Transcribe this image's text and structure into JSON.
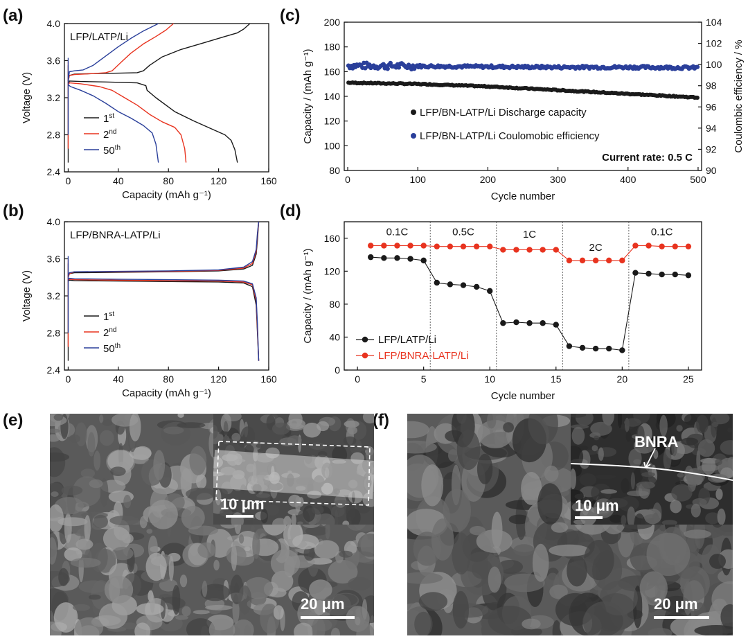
{
  "colors": {
    "black": "#1a1a1a",
    "red": "#e8331f",
    "blue": "#2a3f9a",
    "grid": "#555555"
  },
  "panels": {
    "a": {
      "letter": "(a)",
      "label": "LFP/LATP/Li",
      "xlabel": "Capacity (mAh g⁻¹)",
      "ylabel": "Voltage (V)",
      "xticks": [
        "0",
        "40",
        "80",
        "120",
        "160"
      ],
      "yticks": [
        "2.4",
        "2.8",
        "3.2",
        "3.6",
        "4.0"
      ],
      "legend": [
        {
          "base": "1",
          "sup": "st",
          "color": "black"
        },
        {
          "base": "2",
          "sup": "nd",
          "color": "red"
        },
        {
          "base": "50",
          "sup": "th",
          "color": "blue"
        }
      ]
    },
    "b": {
      "letter": "(b)",
      "label": "LFP/BNRA-LATP/Li",
      "xlabel": "Capacity (mAh g⁻¹)",
      "ylabel": "Voltage (V)",
      "xticks": [
        "0",
        "40",
        "80",
        "120",
        "160"
      ],
      "yticks": [
        "2.4",
        "2.8",
        "3.2",
        "3.6",
        "4.0"
      ],
      "legend": [
        {
          "base": "1",
          "sup": "st",
          "color": "black"
        },
        {
          "base": "2",
          "sup": "nd",
          "color": "red"
        },
        {
          "base": "50",
          "sup": "th",
          "color": "blue"
        }
      ]
    },
    "c": {
      "letter": "(c)",
      "xlabel": "Cycle number",
      "ylabel": "Capacity / (mAh g⁻¹)",
      "y2label": "Coulombic efficiency / %",
      "xticks": [
        "0",
        "100",
        "200",
        "300",
        "400",
        "500"
      ],
      "yticks": [
        "80",
        "100",
        "120",
        "140",
        "160",
        "180",
        "200"
      ],
      "y2ticks": [
        "90",
        "92",
        "94",
        "96",
        "98",
        "100",
        "102",
        "104"
      ],
      "legend": [
        "LFP/BN-LATP/Li Discharge capacity",
        "LFP/BN-LATP/Li Coulomobic efficiency"
      ],
      "note": "Current rate: 0.5 C"
    },
    "d": {
      "letter": "(d)",
      "xlabel": "Cycle number",
      "ylabel": "Capacity / (mAh g⁻¹)",
      "xticks": [
        "0",
        "5",
        "10",
        "15",
        "20",
        "25"
      ],
      "yticks": [
        "0",
        "40",
        "80",
        "120",
        "160"
      ],
      "rates": [
        "0.1C",
        "0.5C",
        "1C",
        "2C",
        "0.1C"
      ],
      "legend": [
        "LFP/LATP/Li",
        "LFP/BNRA-LATP/Li"
      ]
    },
    "e": {
      "letter": "(e)",
      "scale_main": "20 μm",
      "scale_inset": "10 μm"
    },
    "f": {
      "letter": "(f)",
      "scale_main": "20 μm",
      "scale_inset": "10 μm",
      "inset_label": "BNRA"
    }
  },
  "chart_data": [
    {
      "panel": "a",
      "type": "line",
      "xlabel": "Capacity (mAh g⁻¹)",
      "ylabel": "Voltage (V)",
      "xlim": [
        -3,
        160
      ],
      "ylim": [
        2.4,
        4.0
      ],
      "series": [
        {
          "name": "1st",
          "color": "black",
          "charge": [
            [
              0,
              3.38
            ],
            [
              1,
              3.44
            ],
            [
              5,
              3.455
            ],
            [
              20,
              3.46
            ],
            [
              40,
              3.465
            ],
            [
              55,
              3.47
            ],
            [
              60,
              3.49
            ],
            [
              65,
              3.55
            ],
            [
              75,
              3.64
            ],
            [
              90,
              3.72
            ],
            [
              110,
              3.8
            ],
            [
              125,
              3.86
            ],
            [
              135,
              3.9
            ],
            [
              140,
              3.94
            ],
            [
              145,
              4.0
            ]
          ],
          "discharge": [
            [
              0,
              3.34
            ],
            [
              1,
              3.38
            ],
            [
              10,
              3.375
            ],
            [
              30,
              3.37
            ],
            [
              55,
              3.36
            ],
            [
              62,
              3.33
            ],
            [
              63,
              3.28
            ],
            [
              70,
              3.2
            ],
            [
              85,
              3.05
            ],
            [
              100,
              2.95
            ],
            [
              115,
              2.86
            ],
            [
              125,
              2.8
            ],
            [
              130,
              2.74
            ],
            [
              133,
              2.64
            ],
            [
              135,
              2.5
            ]
          ]
        },
        {
          "name": "2nd",
          "color": "red",
          "charge": [
            [
              0,
              3.38
            ],
            [
              1,
              3.44
            ],
            [
              5,
              3.45
            ],
            [
              20,
              3.46
            ],
            [
              30,
              3.47
            ],
            [
              35,
              3.49
            ],
            [
              42,
              3.58
            ],
            [
              50,
              3.68
            ],
            [
              60,
              3.78
            ],
            [
              70,
              3.86
            ],
            [
              78,
              3.93
            ],
            [
              84,
              4.0
            ]
          ],
          "discharge": [
            [
              0,
              3.34
            ],
            [
              1,
              3.36
            ],
            [
              10,
              3.35
            ],
            [
              25,
              3.32
            ],
            [
              35,
              3.28
            ],
            [
              45,
              3.2
            ],
            [
              55,
              3.12
            ],
            [
              65,
              3.02
            ],
            [
              75,
              2.94
            ],
            [
              85,
              2.88
            ],
            [
              90,
              2.8
            ],
            [
              93,
              2.65
            ],
            [
              94,
              2.5
            ]
          ]
        },
        {
          "name": "50th",
          "color": "blue",
          "charge": [
            [
              0,
              3.38
            ],
            [
              1,
              3.48
            ],
            [
              5,
              3.49
            ],
            [
              12,
              3.5
            ],
            [
              20,
              3.55
            ],
            [
              30,
              3.65
            ],
            [
              40,
              3.75
            ],
            [
              50,
              3.84
            ],
            [
              60,
              3.92
            ],
            [
              72,
              4.0
            ]
          ],
          "discharge": [
            [
              0,
              3.34
            ],
            [
              2,
              3.32
            ],
            [
              10,
              3.28
            ],
            [
              20,
              3.22
            ],
            [
              30,
              3.14
            ],
            [
              40,
              3.05
            ],
            [
              50,
              2.98
            ],
            [
              60,
              2.9
            ],
            [
              67,
              2.82
            ],
            [
              70,
              2.7
            ],
            [
              72,
              2.5
            ]
          ]
        }
      ]
    },
    {
      "panel": "b",
      "type": "line",
      "xlabel": "Capacity (mAh g⁻¹)",
      "ylabel": "Voltage (V)",
      "xlim": [
        -3,
        160
      ],
      "ylim": [
        2.4,
        4.0
      ],
      "series": [
        {
          "name": "1st",
          "color": "black",
          "charge": [
            [
              0,
              3.4
            ],
            [
              1,
              3.44
            ],
            [
              5,
              3.45
            ],
            [
              40,
              3.455
            ],
            [
              80,
              3.46
            ],
            [
              120,
              3.47
            ],
            [
              140,
              3.49
            ],
            [
              147,
              3.53
            ],
            [
              150,
              3.65
            ],
            [
              151,
              3.8
            ],
            [
              152,
              4.0
            ]
          ],
          "discharge": [
            [
              0,
              3.36
            ],
            [
              1,
              3.37
            ],
            [
              5,
              3.365
            ],
            [
              40,
              3.36
            ],
            [
              80,
              3.355
            ],
            [
              120,
              3.35
            ],
            [
              140,
              3.34
            ],
            [
              147,
              3.3
            ],
            [
              150,
              3.1
            ],
            [
              151,
              2.8
            ],
            [
              152,
              2.5
            ]
          ]
        },
        {
          "name": "2nd",
          "color": "red",
          "charge": [
            [
              0,
              3.4
            ],
            [
              1,
              3.44
            ],
            [
              5,
              3.46
            ],
            [
              40,
              3.46
            ],
            [
              80,
              3.465
            ],
            [
              120,
              3.475
            ],
            [
              140,
              3.5
            ],
            [
              147,
              3.55
            ],
            [
              150,
              3.68
            ],
            [
              151,
              3.85
            ],
            [
              152,
              4.0
            ]
          ],
          "discharge": [
            [
              0,
              3.37
            ],
            [
              1,
              3.38
            ],
            [
              5,
              3.375
            ],
            [
              40,
              3.37
            ],
            [
              80,
              3.365
            ],
            [
              120,
              3.36
            ],
            [
              140,
              3.35
            ],
            [
              147,
              3.32
            ],
            [
              150,
              3.15
            ],
            [
              151,
              2.85
            ],
            [
              152,
              2.5
            ]
          ]
        },
        {
          "name": "50th",
          "color": "blue",
          "charge": [
            [
              0,
              3.42
            ],
            [
              1,
              3.45
            ],
            [
              5,
              3.46
            ],
            [
              40,
              3.465
            ],
            [
              80,
              3.47
            ],
            [
              120,
              3.48
            ],
            [
              140,
              3.51
            ],
            [
              147,
              3.57
            ],
            [
              150,
              3.7
            ],
            [
              151,
              3.88
            ],
            [
              152,
              4.0
            ]
          ],
          "discharge": [
            [
              0,
              3.38
            ],
            [
              1,
              3.39
            ],
            [
              5,
              3.385
            ],
            [
              40,
              3.38
            ],
            [
              80,
              3.375
            ],
            [
              120,
              3.37
            ],
            [
              140,
              3.36
            ],
            [
              147,
              3.33
            ],
            [
              150,
              3.18
            ],
            [
              151,
              2.9
            ],
            [
              152,
              2.5
            ]
          ]
        }
      ]
    },
    {
      "panel": "c",
      "type": "scatter",
      "xlabel": "Cycle number",
      "ylabel": "Capacity / (mAh g⁻¹)",
      "y2label": "Coulombic efficiency / %",
      "xlim": [
        -5,
        505
      ],
      "ylim": [
        80,
        200
      ],
      "y2lim": [
        90,
        104
      ],
      "series": [
        {
          "name": "LFP/BN-LATP/Li Discharge capacity",
          "axis": "left",
          "color": "black",
          "trend": [
            [
              1,
              151
            ],
            [
              50,
              150.5
            ],
            [
              100,
              150
            ],
            [
              200,
              148
            ],
            [
              300,
              145
            ],
            [
              400,
              142
            ],
            [
              500,
              139
            ]
          ]
        },
        {
          "name": "LFP/BN-LATP/Li Coulomobic efficiency",
          "axis": "right",
          "color": "blue",
          "trend": [
            [
              1,
              99.9
            ],
            [
              100,
              99.85
            ],
            [
              200,
              99.8
            ],
            [
              300,
              99.75
            ],
            [
              400,
              99.75
            ],
            [
              500,
              99.7
            ]
          ]
        }
      ]
    },
    {
      "panel": "d",
      "type": "line",
      "xlabel": "Cycle number",
      "ylabel": "Capacity / (mAh g⁻¹)",
      "xlim": [
        -1,
        26
      ],
      "ylim": [
        0,
        180
      ],
      "x": [
        1,
        2,
        3,
        4,
        5,
        6,
        7,
        8,
        9,
        10,
        11,
        12,
        13,
        14,
        15,
        16,
        17,
        18,
        19,
        20,
        21,
        22,
        23,
        24,
        25
      ],
      "series": [
        {
          "name": "LFP/LATP/Li",
          "color": "black",
          "values": [
            137,
            136,
            136,
            135,
            133,
            106,
            104,
            103,
            101,
            96,
            57,
            58,
            57,
            57,
            55,
            29,
            27,
            26,
            26,
            24,
            118,
            117,
            116,
            116,
            115
          ]
        },
        {
          "name": "LFP/BNRA-LATP/Li",
          "color": "red",
          "values": [
            151,
            151,
            151,
            151,
            151,
            150,
            150,
            150,
            150,
            150,
            146,
            146,
            146,
            146,
            146,
            133,
            133,
            133,
            133,
            133,
            151,
            151,
            150,
            150,
            150
          ]
        }
      ],
      "rate_boundaries": [
        5.5,
        10.5,
        15.5,
        20.5
      ]
    }
  ]
}
